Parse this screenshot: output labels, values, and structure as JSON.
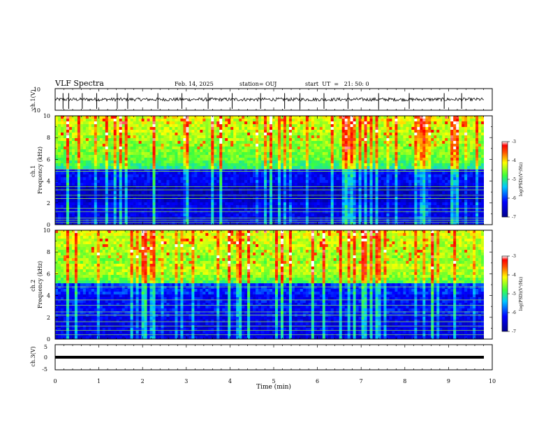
{
  "header": {
    "title": "VLF Spectra",
    "date": "Feb. 14, 2025",
    "station": "station= OUJ",
    "start": "start  UT  =   21: 50: 0"
  },
  "colors": {
    "spectrum_low": "#00008c",
    "spectrum_mid": "#00c8ff",
    "spectrum_green": "#3cff3c",
    "spectrum_high": "#ff0000",
    "trace": "#000000"
  },
  "chart_data": [
    {
      "type": "line",
      "name": "ch1-waveform",
      "ylabel": "ch.1(V)",
      "ylim": [
        -10,
        10
      ],
      "yticks": [
        "10",
        "-10"
      ],
      "xlim": [
        0,
        10
      ],
      "baseline": 0,
      "spikes_min": [
        0.18,
        0.31,
        0.62,
        0.95,
        1.42,
        1.66,
        2.35,
        2.9,
        3.5,
        4.05,
        4.7,
        5.25,
        5.6,
        6.15,
        6.7,
        7.4,
        8.1,
        8.9,
        9.3
      ]
    },
    {
      "type": "heatmap",
      "name": "ch1-spectrogram",
      "ylabel": "ch.1\nFrequency (kHz)",
      "ylim": [
        0,
        10
      ],
      "yticks": [
        "0",
        "2",
        "4",
        "6",
        "8",
        "10"
      ],
      "xlim": [
        0,
        10
      ],
      "colorbar": {
        "label": "log(PSD)(V²/Hz)",
        "range": [
          -7,
          -3
        ],
        "ticks": [
          "-3",
          "-4",
          "-5",
          "-6",
          "-7"
        ]
      },
      "bright_lines_khz": [
        0.2,
        0.4,
        0.6,
        1.2,
        1.5,
        2.4,
        2.7,
        3.2,
        3.5,
        4.9,
        5.1
      ]
    },
    {
      "type": "heatmap",
      "name": "ch2-spectrogram",
      "ylabel": "ch.2\nFrequency (kHz)",
      "ylim": [
        0,
        10
      ],
      "yticks": [
        "0",
        "2",
        "4",
        "6",
        "8",
        "10"
      ],
      "xlim": [
        0,
        10
      ],
      "colorbar": {
        "label": "log(PSD)(V²/Hz)",
        "range": [
          -7,
          -3
        ],
        "ticks": [
          "-3",
          "-4",
          "-5",
          "-6",
          "-7"
        ]
      },
      "bright_lines_khz": [
        0.4,
        0.8,
        1.2,
        1.6,
        2.2,
        2.5,
        3.1,
        3.6,
        4.8
      ]
    },
    {
      "type": "line",
      "name": "ch3-waveform",
      "ylabel": "ch.3(V)",
      "ylim": [
        -5,
        5
      ],
      "yticks": [
        "5",
        "0",
        "-5"
      ],
      "xlim": [
        0,
        10
      ],
      "baseline": 0
    }
  ],
  "xaxis": {
    "label": "Time (min)",
    "ticks": [
      "0",
      "1",
      "2",
      "3",
      "4",
      "5",
      "6",
      "7",
      "8",
      "9",
      "10"
    ]
  }
}
